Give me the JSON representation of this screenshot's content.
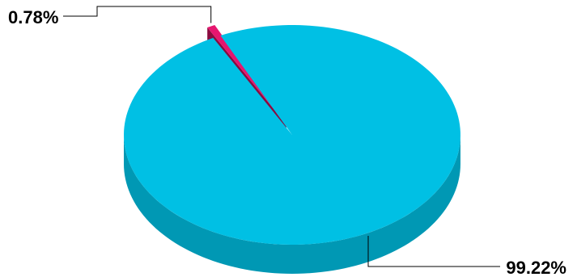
{
  "chart_data": {
    "type": "pie",
    "style": "3d",
    "title": "",
    "slices": [
      {
        "value": 0.78,
        "label": "0.78%",
        "color": "#e6166f",
        "side_color": "#8a0a3f",
        "exploded": true
      },
      {
        "value": 99.22,
        "label": "99.22%",
        "color": "#00c0e4",
        "side_color": "#0098b4",
        "exploded": false
      }
    ],
    "legend": "none"
  }
}
